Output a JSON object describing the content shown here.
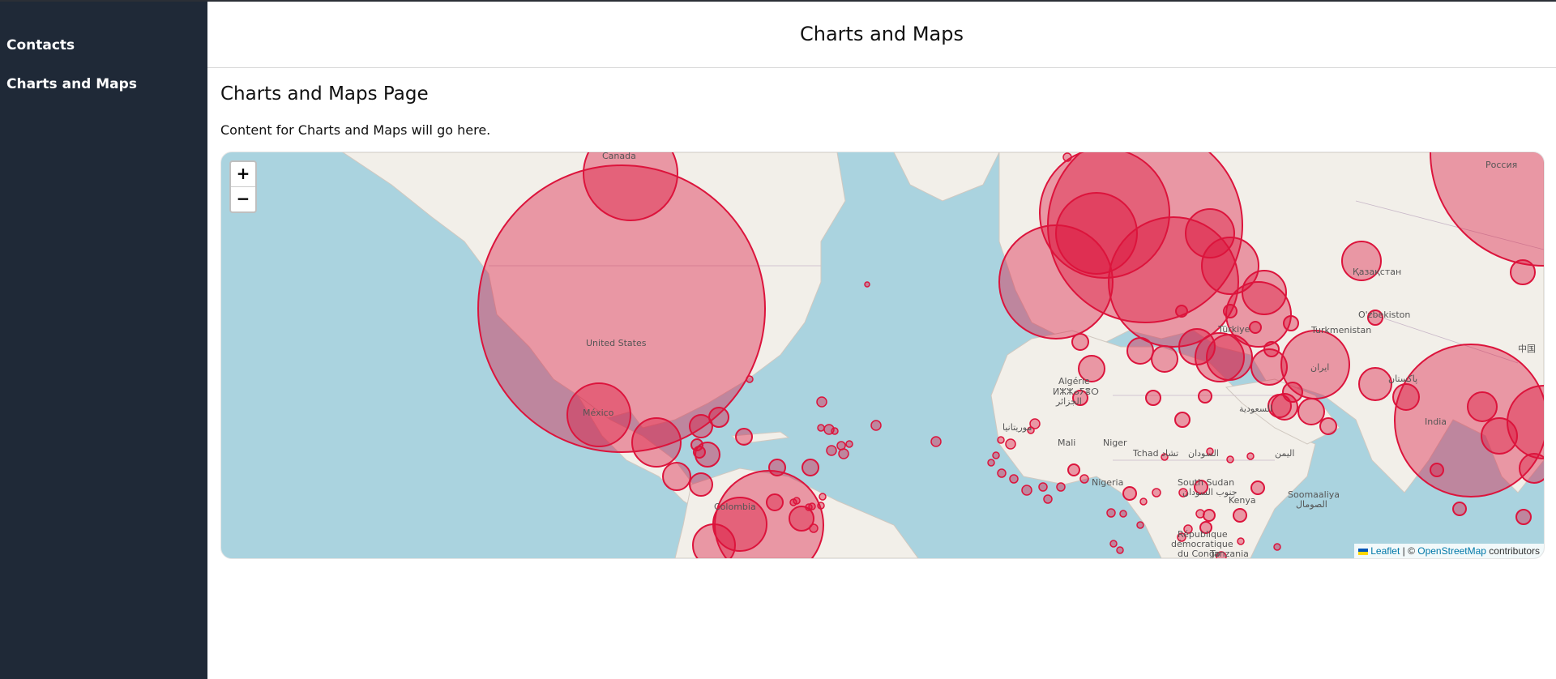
{
  "sidebar": {
    "items": [
      {
        "label": "Contacts"
      },
      {
        "label": "Charts and Maps"
      }
    ]
  },
  "header": {
    "title": "Charts and Maps"
  },
  "main": {
    "page_title": "Charts and Maps Page",
    "description": "Content for Charts and Maps will go here."
  },
  "map": {
    "zoom_in": "+",
    "zoom_out": "−",
    "attribution": {
      "leaflet": "Leaflet",
      "separator": " | © ",
      "osm": "OpenStreetMap",
      "suffix": " contributors"
    },
    "labels": {
      "canada": "Canada",
      "united_states": "United States",
      "mexico": "México",
      "colombia": "Colombia",
      "russia": "Россия",
      "kazakhstan": "Қазақстан",
      "uzbekistan": "O'zbekiston",
      "turkmenistan": "Turkmenistan",
      "turkiye": "Türkiye",
      "iran": "ایران",
      "pakistan": "پاکستان",
      "india": "India",
      "china": "中国",
      "algeria": "Algérie",
      "algeria_ar": "ⵍⵣⵣⴰⵢⴻⵔ",
      "algeria_ar2": "الجزائر",
      "mali": "Mali",
      "niger": "Niger",
      "chad": "Tchad تشاد",
      "sudan": "السودان",
      "nigeria": "Nigeria",
      "south_sudan": "South Sudan",
      "south_sudan_ar": "جنوب السودان",
      "somalia": "Soomaaliya",
      "somalia_ar": "الصومال",
      "kenya": "Kenya",
      "yemen": "اليمن",
      "saudi": "السعودية",
      "drc1": "République",
      "drc2": "démocratique",
      "drc3": "du Congo",
      "tanzania": "Tanzania",
      "mauritania": "موريتانيا"
    },
    "bubble_color": "#dc143c",
    "bubble_fill_opacity": 0.4
  }
}
